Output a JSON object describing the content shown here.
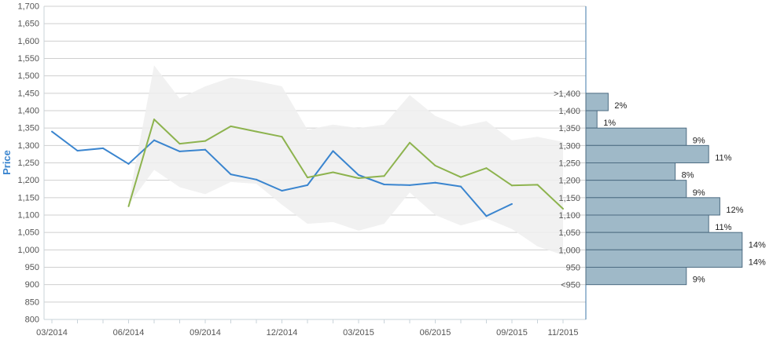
{
  "chart_data": {
    "type": "line",
    "ylabel": "Price",
    "ylim": [
      800,
      1700
    ],
    "yticks": [
      800,
      850,
      900,
      950,
      1000,
      1050,
      1100,
      1150,
      1200,
      1250,
      1300,
      1350,
      1400,
      1450,
      1500,
      1550,
      1600,
      1650,
      1700
    ],
    "xlim": [
      "2014-03",
      "2015-11"
    ],
    "x_tick_labels": [
      "03/2014",
      "06/2014",
      "09/2014",
      "12/2014",
      "03/2015",
      "06/2015",
      "09/2015",
      "11/2015"
    ],
    "x_tick_months": [
      "2014-03",
      "2014-06",
      "2014-09",
      "2014-12",
      "2015-03",
      "2015-06",
      "2015-09",
      "2015-11"
    ],
    "grid": true,
    "band": {
      "x": [
        "2014-06",
        "2014-07",
        "2014-08",
        "2014-09",
        "2014-10",
        "2014-11",
        "2014-12",
        "2015-01",
        "2015-02",
        "2015-03",
        "2015-04",
        "2015-05",
        "2015-06",
        "2015-07",
        "2015-08",
        "2015-09",
        "2015-10",
        "2015-11"
      ],
      "upper": [
        1140,
        1530,
        1435,
        1470,
        1495,
        1485,
        1470,
        1345,
        1360,
        1350,
        1360,
        1445,
        1385,
        1355,
        1370,
        1315,
        1325,
        1310
      ],
      "lower": [
        1130,
        1230,
        1180,
        1160,
        1195,
        1190,
        1130,
        1075,
        1080,
        1055,
        1075,
        1165,
        1100,
        1070,
        1090,
        1060,
        1010,
        985
      ]
    },
    "series": [
      {
        "color": "#3a85cf",
        "x": [
          "2014-03",
          "2014-04",
          "2014-05",
          "2014-06",
          "2014-07",
          "2014-08",
          "2014-09",
          "2014-10",
          "2014-11",
          "2014-12",
          "2015-01",
          "2015-02",
          "2015-03",
          "2015-04",
          "2015-05",
          "2015-06",
          "2015-07",
          "2015-08",
          "2015-09"
        ],
        "values": [
          1340,
          1285,
          1292,
          1247,
          1315,
          1283,
          1288,
          1217,
          1202,
          1170,
          1186,
          1284,
          1215,
          1188,
          1186,
          1193,
          1182,
          1097,
          1132
        ]
      },
      {
        "color": "#8db34e",
        "x": [
          "2014-06",
          "2014-07",
          "2014-08",
          "2014-09",
          "2014-10",
          "2014-11",
          "2014-12",
          "2015-01",
          "2015-02",
          "2015-03",
          "2015-04",
          "2015-05",
          "2015-06",
          "2015-07",
          "2015-08",
          "2015-09",
          "2015-10",
          "2015-11"
        ],
        "values": [
          1125,
          1375,
          1305,
          1313,
          1355,
          1340,
          1325,
          1208,
          1223,
          1206,
          1212,
          1308,
          1242,
          1209,
          1235,
          1185,
          1187,
          1118
        ]
      }
    ],
    "distribution": {
      "color": "#9fb9c8",
      "bins": [
        {
          "label": ">1,400",
          "low": 1400,
          "high": 1450,
          "percent": 2,
          "percent_label": "2%"
        },
        {
          "label": "1,400",
          "low": 1350,
          "high": 1400,
          "percent": 1,
          "percent_label": "1%"
        },
        {
          "label": "1,350",
          "low": 1300,
          "high": 1350,
          "percent": 9,
          "percent_label": "9%"
        },
        {
          "label": "1,300",
          "low": 1250,
          "high": 1300,
          "percent": 11,
          "percent_label": "11%"
        },
        {
          "label": "1,250",
          "low": 1200,
          "high": 1250,
          "percent": 8,
          "percent_label": "8%"
        },
        {
          "label": "1,200",
          "low": 1150,
          "high": 1200,
          "percent": 9,
          "percent_label": "9%"
        },
        {
          "label": "1,150",
          "low": 1100,
          "high": 1150,
          "percent": 12,
          "percent_label": "12%"
        },
        {
          "label": "1,100",
          "low": 1050,
          "high": 1100,
          "percent": 11,
          "percent_label": "11%"
        },
        {
          "label": "1,050",
          "low": 1000,
          "high": 1050,
          "percent": 14,
          "percent_label": "14%"
        },
        {
          "label": "1,000",
          "low": 950,
          "high": 1000,
          "percent": 14,
          "percent_label": "14%"
        },
        {
          "label": "950",
          "low": 900,
          "high": 950,
          "percent": 9,
          "percent_label": "9%"
        },
        {
          "label": "<950",
          "low": null,
          "high": null,
          "percent": null,
          "percent_label": ""
        }
      ]
    }
  }
}
